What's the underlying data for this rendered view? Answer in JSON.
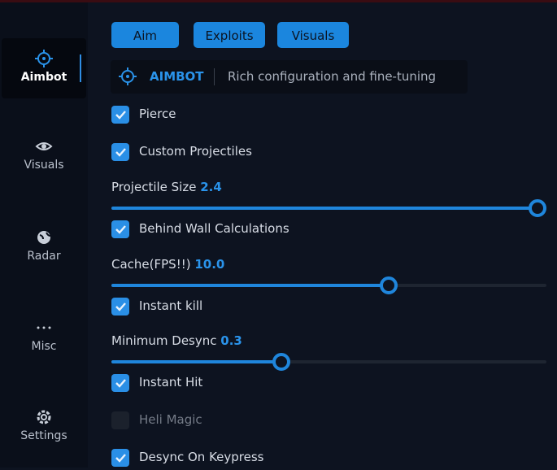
{
  "sidebar": {
    "items": [
      {
        "label": "Aimbot",
        "active": true
      },
      {
        "label": "Visuals",
        "active": false
      },
      {
        "label": "Radar",
        "active": false
      },
      {
        "label": "Misc",
        "active": false
      },
      {
        "label": "Settings",
        "active": false
      }
    ]
  },
  "tabs": [
    "Aim",
    "Exploits",
    "Visuals"
  ],
  "header": {
    "title": "AIMBOT",
    "subtitle": "Rich configuration and fine-tuning"
  },
  "options": [
    {
      "kind": "checkbox",
      "label": "Pierce",
      "checked": true
    },
    {
      "kind": "checkbox",
      "label": "Custom Projectiles",
      "checked": true
    },
    {
      "kind": "slider",
      "label": "Projectile Size",
      "value": "2.4"
    },
    {
      "kind": "checkbox",
      "label": "Behind Wall Calculations",
      "checked": true
    },
    {
      "kind": "slider",
      "label": "Cache(FPS!!)",
      "value": "10.0"
    },
    {
      "kind": "checkbox",
      "label": "Instant kill",
      "checked": true
    },
    {
      "kind": "slider",
      "label": "Minimum Desync",
      "value": "0.3"
    },
    {
      "kind": "checkbox",
      "label": "Instant Hit",
      "checked": true
    },
    {
      "kind": "checkbox",
      "label": "Heli Magic",
      "checked": false
    },
    {
      "kind": "checkbox",
      "label": "Desync On Keypress",
      "checked": true
    }
  ]
}
